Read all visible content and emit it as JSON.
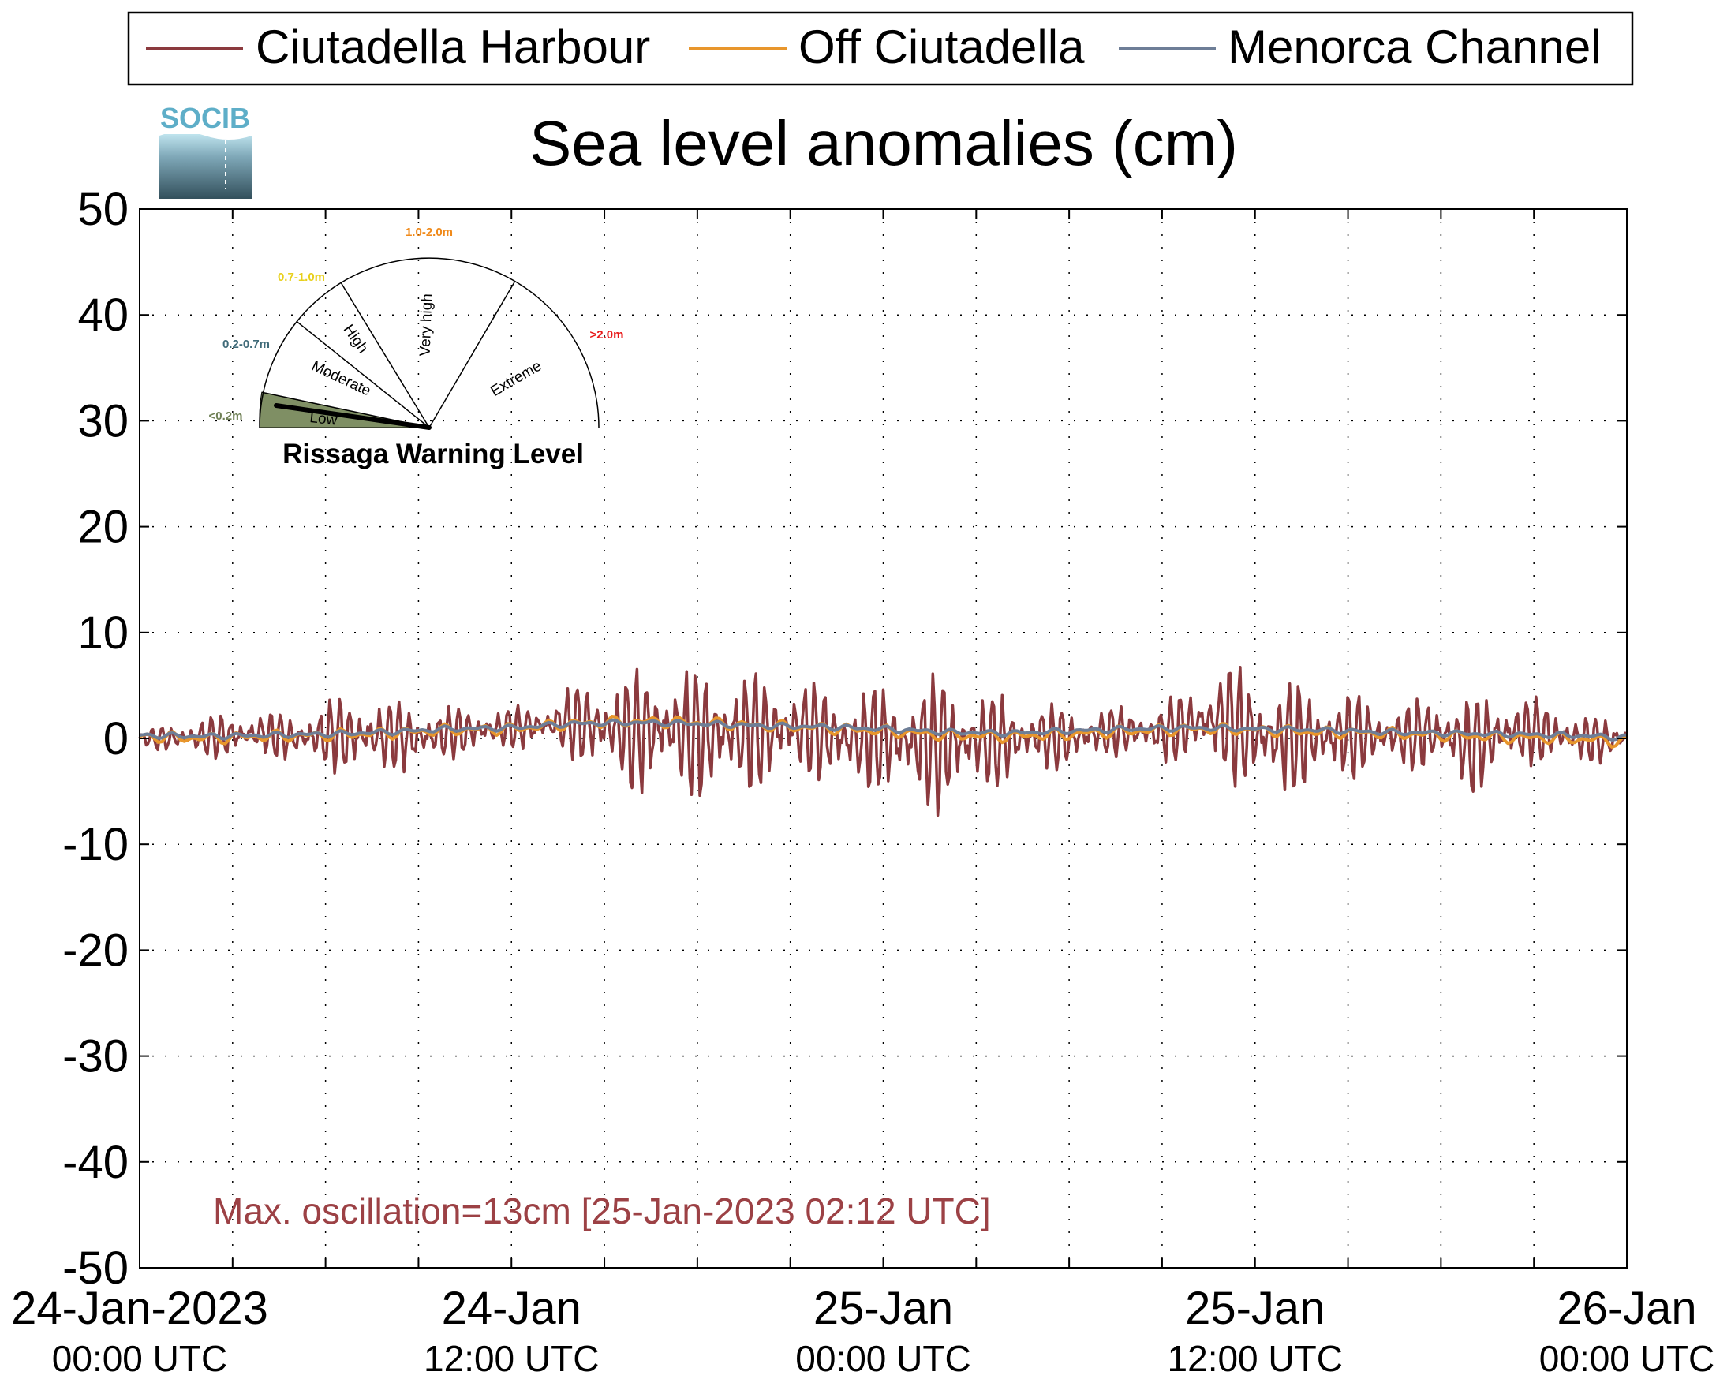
{
  "logo_text": "SOCIB",
  "colors": {
    "harbour": "#8b3a3e",
    "off": "#e8962c",
    "channel": "#6e7e97",
    "note": "#9c4145",
    "gauge_low": "#7f8f64",
    "gauge_label_low": "#6f8055",
    "gauge_label_moderate": "#3f6a78",
    "gauge_label_high": "#e8d01c",
    "gauge_label_veryhigh": "#f08a1a",
    "gauge_label_extreme": "#e81818"
  },
  "gauge": {
    "title": "Rissaga Warning Level",
    "needle_level": "Low",
    "sectors": [
      {
        "name": "Low",
        "range": "<0.2m"
      },
      {
        "name": "Moderate",
        "range": "0.2-0.7m"
      },
      {
        "name": "High",
        "range": "0.7-1.0m"
      },
      {
        "name": "Very high",
        "range": "1.0-2.0m"
      },
      {
        "name": "Extreme",
        "range": ">2.0m"
      }
    ]
  },
  "chart_data": {
    "type": "line",
    "title": "Sea level anomalies (cm)",
    "ylim": [
      -50,
      50
    ],
    "yticks": [
      "50",
      "40",
      "30",
      "20",
      "10",
      "0",
      "-10",
      "-20",
      "-30",
      "-40",
      "-50"
    ],
    "xlim": [
      "24-Jan-2023 00:00 UTC",
      "26-Jan-2023 00:00 UTC"
    ],
    "grid": true,
    "legend_position": "top",
    "xtick_labels": [
      {
        "line1": "24-Jan-2023",
        "line2": "00:00 UTC"
      },
      {
        "line1": "24-Jan",
        "line2": "12:00 UTC"
      },
      {
        "line1": "25-Jan",
        "line2": "00:00 UTC"
      },
      {
        "line1": "25-Jan",
        "line2": "12:00 UTC"
      },
      {
        "line1": "26-Jan",
        "line2": "00:00 UTC"
      }
    ],
    "annotation": "Max. oscillation=13cm [25-Jan-2023 02:12 UTC]",
    "series": [
      {
        "name": "Ciutadella Harbour",
        "x_hours": [
          0,
          1,
          2,
          3,
          4,
          5,
          6,
          7,
          8,
          9,
          10,
          11,
          12,
          13,
          14,
          15,
          16,
          17,
          18,
          19,
          20,
          21,
          22,
          23,
          24,
          25,
          26,
          27,
          28,
          29,
          30,
          31,
          32,
          33,
          34,
          35,
          36,
          37,
          38,
          39,
          40,
          41,
          42,
          43,
          44,
          45,
          46,
          47,
          48
        ],
        "min": [
          -0.5,
          -1.5,
          -1.8,
          -2,
          -1.5,
          -2.5,
          -3,
          -4,
          -3,
          -3.5,
          -2,
          -1.5,
          -1,
          -1,
          -2,
          -4,
          -5.5,
          -5,
          -6,
          -6,
          -5,
          -4,
          -4,
          -5.5,
          -5,
          -6.5,
          -7.5,
          -5,
          -4.5,
          -3,
          -3,
          -2,
          -1.5,
          -2.5,
          -2,
          -4,
          -5.5,
          -5.5,
          -5,
          -4,
          -3,
          -3,
          -3.5,
          -5.5,
          -3.5,
          -2.5,
          -2.5,
          -2.5,
          -1.5
        ],
        "max": [
          0.5,
          1.5,
          2,
          2.5,
          2.5,
          2.5,
          3.5,
          4.5,
          3.5,
          3.5,
          3,
          3,
          3,
          3.5,
          5,
          6,
          6.5,
          7,
          6.5,
          7,
          6,
          6,
          5,
          5,
          5,
          5.5,
          6.5,
          4.5,
          4,
          3.5,
          3,
          3,
          3,
          3.5,
          5,
          7.5,
          6,
          5.5,
          5,
          4.5,
          3.5,
          3.5,
          4.5,
          4,
          4.5,
          4,
          3,
          2,
          1.5
        ]
      },
      {
        "name": "Off Ciutadella",
        "x_hours": [
          0,
          2,
          4,
          6,
          8,
          10,
          12,
          14,
          16,
          18,
          20,
          22,
          24,
          26,
          28,
          30,
          32,
          34,
          36,
          38,
          40,
          42,
          44,
          46,
          48
        ],
        "values": [
          0.2,
          0,
          0.2,
          0.3,
          0.5,
          0.8,
          0.9,
          1.4,
          1.6,
          1.5,
          1.2,
          1.0,
          0.7,
          0.3,
          0.2,
          0.4,
          0.7,
          0.9,
          0.8,
          0.6,
          0.5,
          0.3,
          0.1,
          0,
          -0.3
        ]
      },
      {
        "name": "Menorca Channel",
        "x_hours": [
          0,
          2,
          4,
          6,
          8,
          10,
          12,
          14,
          16,
          18,
          20,
          22,
          24,
          26,
          28,
          30,
          32,
          34,
          36,
          38,
          40,
          42,
          44,
          46,
          48
        ],
        "values": [
          0.3,
          0.2,
          0.3,
          0.4,
          0.6,
          0.9,
          1.0,
          1.4,
          1.5,
          1.4,
          1.2,
          1.1,
          0.9,
          0.6,
          0.5,
          0.7,
          0.9,
          1.0,
          0.9,
          0.8,
          0.6,
          0.5,
          0.4,
          0.3,
          0.1
        ]
      }
    ]
  }
}
